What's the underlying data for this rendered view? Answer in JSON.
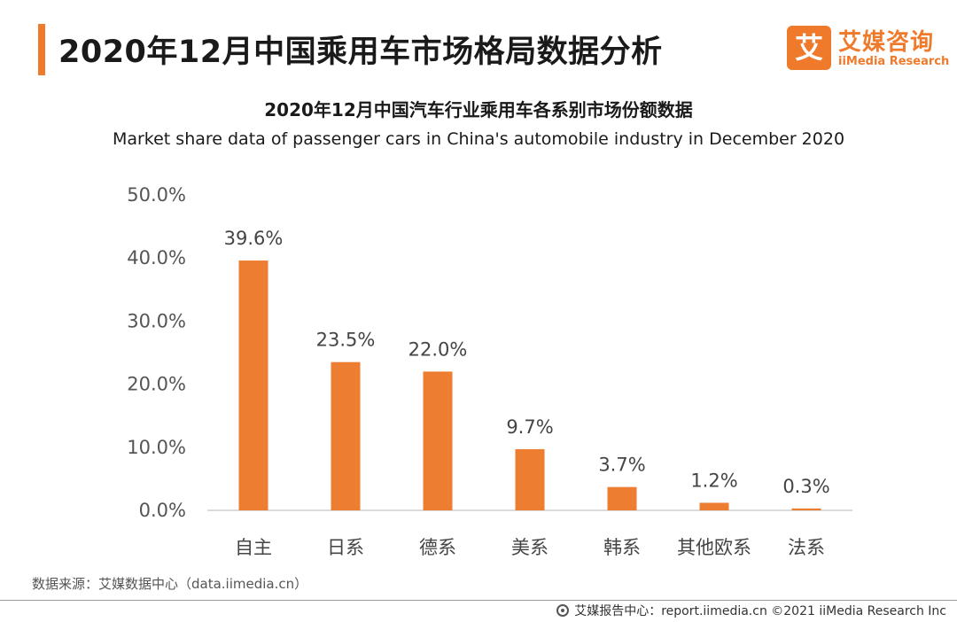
{
  "header": {
    "title": "2020年12月中国乘用车市场格局数据分析",
    "accent_color": "#f07a2b"
  },
  "logo": {
    "mark": "艾",
    "name_cn": "艾媒咨询",
    "name_en": "iiMedia Research"
  },
  "chart_data": {
    "type": "bar",
    "title": "2020年12月中国汽车行业乘用车各系别市场份额数据",
    "subtitle": "Market share data of passenger cars in China's automobile industry in December 2020",
    "categories": [
      "自主",
      "日系",
      "德系",
      "美系",
      "韩系",
      "其他欧系",
      "法系"
    ],
    "values": [
      39.6,
      23.5,
      22.0,
      9.7,
      3.7,
      1.2,
      0.3
    ],
    "value_labels": [
      "39.6%",
      "23.5%",
      "22.0%",
      "9.7%",
      "3.7%",
      "1.2%",
      "0.3%"
    ],
    "y_ticks": [
      "0.0%",
      "10.0%",
      "20.0%",
      "30.0%",
      "40.0%",
      "50.0%"
    ],
    "ylim": [
      0,
      50
    ],
    "xlabel": "",
    "ylabel": "",
    "grid": false,
    "bar_color": "#ed7d31"
  },
  "footer": {
    "source": "数据来源：艾媒数据中心（data.iimedia.cn）",
    "credit": "艾媒报告中心：report.iimedia.cn  ©2021  iiMedia Research  Inc"
  }
}
